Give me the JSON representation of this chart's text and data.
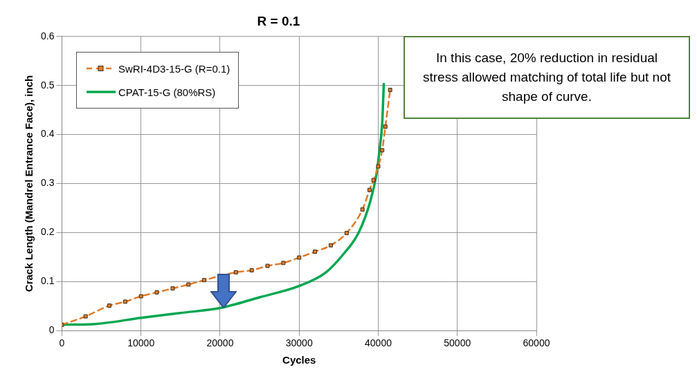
{
  "chart_data": {
    "type": "line",
    "title": "R = 0.1",
    "xlabel": "Cycles",
    "ylabel": "Crack Length (Mandrel Entrance Face), inch",
    "xlim": [
      0,
      60000
    ],
    "xticks": [
      0,
      10000,
      20000,
      30000,
      40000,
      50000,
      60000
    ],
    "ylim": [
      0,
      0.6
    ],
    "yticks": [
      0,
      0.1,
      0.2,
      0.3,
      0.4,
      0.5,
      0.6
    ],
    "grid": true,
    "legend": "top left",
    "annotations": [
      "In this case, 20% reduction in residual stress allowed matching of total life but not shape of curve."
    ],
    "series": [
      {
        "name": "SwRI-4D3-15-G (R=0.1)",
        "color": "#e07b2a",
        "marker": "square",
        "line_style": "dashed",
        "x": [
          0,
          3000,
          6000,
          8000,
          10000,
          12000,
          14000,
          16000,
          18000,
          22000,
          24000,
          26000,
          28000,
          30000,
          32000,
          34000,
          36000,
          38000,
          38900,
          39400,
          40000,
          40500,
          40900,
          41500
        ],
        "values": [
          0.012,
          0.029,
          0.051,
          0.059,
          0.07,
          0.078,
          0.086,
          0.094,
          0.103,
          0.119,
          0.123,
          0.132,
          0.138,
          0.149,
          0.161,
          0.174,
          0.199,
          0.247,
          0.287,
          0.307,
          0.335,
          0.368,
          0.416,
          0.491
        ]
      },
      {
        "name": "CPAT-15-G (80%RS)",
        "color": "#00a64f",
        "marker": "none",
        "line_style": "solid",
        "x": [
          0,
          3800,
          10000,
          15000,
          20000,
          25000,
          30000,
          33400,
          35800,
          37500,
          39000,
          39800,
          40200,
          40500,
          40700
        ],
        "values": [
          0.012,
          0.013,
          0.026,
          0.036,
          0.046,
          0.068,
          0.091,
          0.119,
          0.16,
          0.199,
          0.264,
          0.322,
          0.374,
          0.423,
          0.503
        ]
      }
    ]
  }
}
